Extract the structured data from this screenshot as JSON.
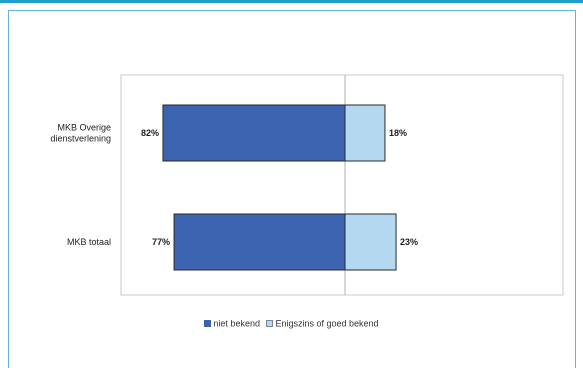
{
  "chart_data": {
    "type": "bar",
    "orientation": "horizontal",
    "stacked": "diverging",
    "categories": [
      "MKB Overige dienstverlening",
      "MKB totaal"
    ],
    "category_lines": [
      [
        "MKB Overige",
        "dienstverlening"
      ],
      [
        "MKB totaal"
      ]
    ],
    "series": [
      {
        "name": "niet bekend",
        "values": [
          82,
          77
        ],
        "labels": [
          "82%",
          "77%"
        ],
        "color": "#3c64b1"
      },
      {
        "name": "Enigszins of goed bekend",
        "values": [
          18,
          23
        ],
        "labels": [
          "18%",
          "23%"
        ],
        "color": "#b4d8f0"
      }
    ],
    "legend_position": "bottom",
    "grid": false
  }
}
